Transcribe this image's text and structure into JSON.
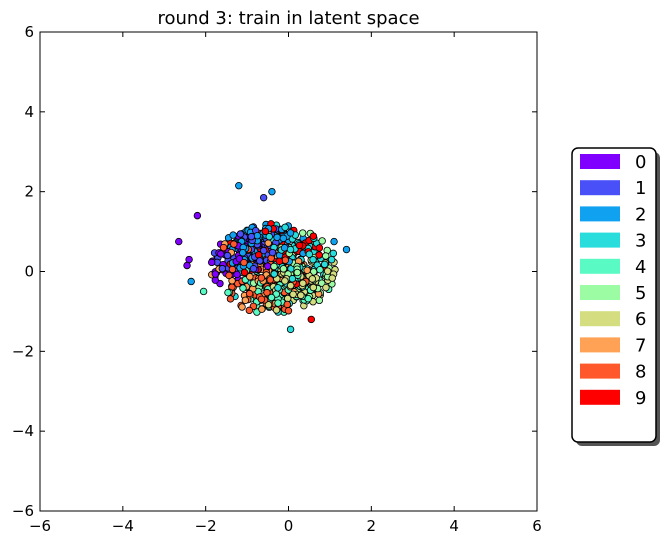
{
  "chart_data": {
    "type": "scatter",
    "title": "round 3: train in latent space",
    "xlabel": "",
    "ylabel": "",
    "xlim": [
      -6,
      6
    ],
    "ylim": [
      -6,
      6
    ],
    "xticks": [
      -6,
      -4,
      -2,
      0,
      2,
      4,
      6
    ],
    "yticks": [
      -6,
      -4,
      -2,
      0,
      2,
      4,
      6
    ],
    "xtick_labels": [
      "−6",
      "−4",
      "−2",
      "0",
      "2",
      "4",
      "6"
    ],
    "ytick_labels": [
      "−6",
      "−4",
      "−2",
      "0",
      "2",
      "4",
      "6"
    ],
    "grid": false,
    "legend_placement": "right",
    "series": [
      {
        "name": "0",
        "color": "#8000ff"
      },
      {
        "name": "1",
        "color": "#4a50f7"
      },
      {
        "name": "2",
        "color": "#10a2f0"
      },
      {
        "name": "3",
        "color": "#2adddd"
      },
      {
        "name": "4",
        "color": "#5afac5"
      },
      {
        "name": "5",
        "color": "#9cfca4"
      },
      {
        "name": "6",
        "color": "#d4dd80"
      },
      {
        "name": "7",
        "color": "#ffa256"
      },
      {
        "name": "8",
        "color": "#ff582c"
      },
      {
        "name": "9",
        "color": "#ff0000"
      }
    ],
    "points": [
      {
        "x": -2.65,
        "y": 0.75,
        "c": 0
      },
      {
        "x": -2.45,
        "y": 0.15,
        "c": 0
      },
      {
        "x": -2.4,
        "y": 0.3,
        "c": 0
      },
      {
        "x": -2.2,
        "y": 1.4,
        "c": 0
      },
      {
        "x": -1.2,
        "y": 2.15,
        "c": 2
      },
      {
        "x": -0.4,
        "y": 2.0,
        "c": 2
      },
      {
        "x": 1.4,
        "y": 0.55,
        "c": 2
      },
      {
        "x": -2.35,
        "y": -0.25,
        "c": 2
      },
      {
        "x": 0.05,
        "y": -1.45,
        "c": 3
      },
      {
        "x": 0.55,
        "y": -1.2,
        "c": 9
      },
      {
        "x": -2.05,
        "y": -0.5,
        "c": 4
      },
      {
        "x": 1.1,
        "y": 0.75,
        "c": 2
      },
      {
        "x": -0.6,
        "y": 1.85,
        "c": 1
      }
    ],
    "clusters": [
      {
        "c": 0,
        "cx": -1.5,
        "cy": 0.35,
        "sx": 0.45,
        "sy": 0.35,
        "n": 55
      },
      {
        "c": 1,
        "cx": -1.1,
        "cy": 0.7,
        "sx": 0.55,
        "sy": 0.4,
        "n": 70
      },
      {
        "c": 2,
        "cx": -0.6,
        "cy": 0.9,
        "sx": 0.55,
        "sy": 0.35,
        "n": 95
      },
      {
        "c": 3,
        "cx": 0.0,
        "cy": 0.3,
        "sx": 0.65,
        "sy": 0.5,
        "n": 90
      },
      {
        "c": 4,
        "cx": -0.2,
        "cy": -0.5,
        "sx": 0.6,
        "sy": 0.35,
        "n": 75
      },
      {
        "c": 5,
        "cx": 0.2,
        "cy": 0.0,
        "sx": 0.55,
        "sy": 0.4,
        "n": 70
      },
      {
        "c": 6,
        "cx": 0.3,
        "cy": -0.3,
        "sx": 0.55,
        "sy": 0.4,
        "n": 80
      },
      {
        "c": 7,
        "cx": -0.5,
        "cy": -0.1,
        "sx": 0.65,
        "sy": 0.5,
        "n": 75
      },
      {
        "c": 8,
        "cx": -0.7,
        "cy": -0.2,
        "sx": 0.65,
        "sy": 0.55,
        "n": 100
      },
      {
        "c": 9,
        "cx": -0.3,
        "cy": 0.4,
        "sx": 0.6,
        "sy": 0.45,
        "n": 60
      }
    ]
  }
}
